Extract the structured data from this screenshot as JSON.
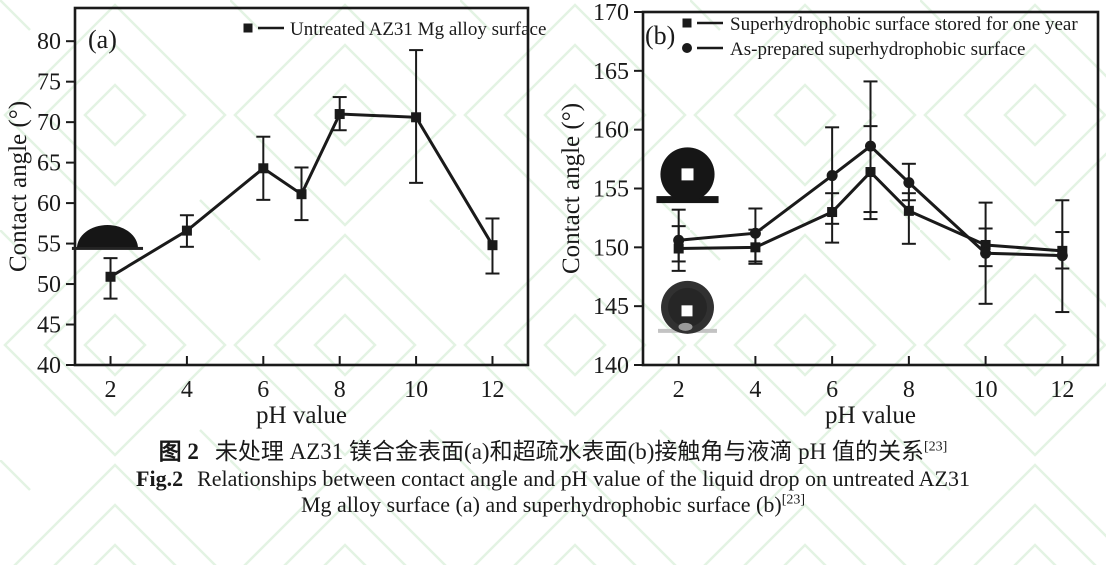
{
  "colors": {
    "line": "#1a1a1a",
    "text": "#1a1a1a",
    "watermark_green": "#d9efd9",
    "background": "#ffffff"
  },
  "caption": {
    "zh_label": "图 2",
    "zh_text": "未处理 AZ31 镁合金表面(a)和超疏水表面(b)接触角与液滴 pH 值的关系",
    "ref": "[23]",
    "en_label": "Fig.2",
    "en_line1": "Relationships between contact angle and pH value of the liquid drop on untreated AZ31",
    "en_line2": "Mg alloy surface (a) and superhydrophobic surface (b)"
  },
  "chart_data": [
    {
      "type": "line",
      "panel_label": "(a)",
      "xlabel": "pH value",
      "ylabel": "Contact angle (°)",
      "x": [
        2,
        4,
        6,
        7,
        8,
        10,
        12
      ],
      "xticks": [
        2,
        4,
        6,
        8,
        10,
        12
      ],
      "yticks": [
        40,
        45,
        50,
        55,
        60,
        65,
        70,
        75,
        80
      ],
      "xlim": [
        1.07,
        12.93
      ],
      "ylim": [
        40,
        84.1
      ],
      "grid": false,
      "legend_position": "top-center",
      "series": [
        {
          "name": "Untreated AZ31 Mg alloy surface",
          "marker": "square",
          "values": [
            50.9,
            56.6,
            64.3,
            61.1,
            71.0,
            70.6,
            54.8
          ],
          "err_low": [
            48.2,
            54.6,
            60.4,
            57.9,
            69.0,
            62.5,
            51.3
          ],
          "err_high": [
            53.2,
            58.5,
            68.2,
            64.4,
            73.1,
            78.9,
            58.1
          ]
        }
      ],
      "insets": [
        {
          "kind": "sessile-drop-dome",
          "label": "low-contact-angle-droplet-photo",
          "cx": 1.92,
          "base_y": 54.4,
          "half_width": 0.8,
          "height": 2.9
        }
      ]
    },
    {
      "type": "line",
      "panel_label": "(b)",
      "xlabel": "pH value",
      "ylabel": "Contact angle (°)",
      "x": [
        2,
        4,
        6,
        7,
        8,
        10,
        12
      ],
      "xticks": [
        2,
        4,
        6,
        8,
        10,
        12
      ],
      "yticks": [
        140,
        145,
        150,
        155,
        160,
        165,
        170
      ],
      "xlim": [
        1.07,
        12.93
      ],
      "ylim": [
        140,
        170
      ],
      "grid": false,
      "legend_position": "top-left",
      "series": [
        {
          "name": "Superhydrophobic surface stored for one year",
          "marker": "square",
          "values": [
            149.9,
            150.0,
            153.0,
            156.4,
            153.1,
            150.2,
            149.7
          ],
          "err_low": [
            148.8,
            148.6,
            150.4,
            152.4,
            150.3,
            145.2,
            144.5
          ],
          "err_high": [
            151.8,
            151.5,
            154.6,
            160.3,
            154.6,
            153.8,
            154.0
          ]
        },
        {
          "name": "As-prepared superhydrophobic surface",
          "marker": "circle",
          "values": [
            150.6,
            151.2,
            156.1,
            158.6,
            155.5,
            149.5,
            149.3
          ],
          "err_low": [
            148.0,
            148.8,
            152.0,
            153.0,
            154.0,
            148.4,
            148.2
          ],
          "err_high": [
            153.2,
            153.3,
            160.2,
            164.1,
            157.1,
            151.6,
            151.3
          ]
        }
      ],
      "insets": [
        {
          "kind": "round-drop-black",
          "label": "high-contact-angle-droplet-icon",
          "cx": 2.23,
          "cy": 156.2,
          "radius": 2.3,
          "base_y": 154.1
        },
        {
          "kind": "round-drop-photo",
          "label": "high-contact-angle-droplet-photo",
          "cx": 2.23,
          "cy": 144.9,
          "radius": 2.25,
          "base_y": 142.9
        }
      ]
    }
  ]
}
